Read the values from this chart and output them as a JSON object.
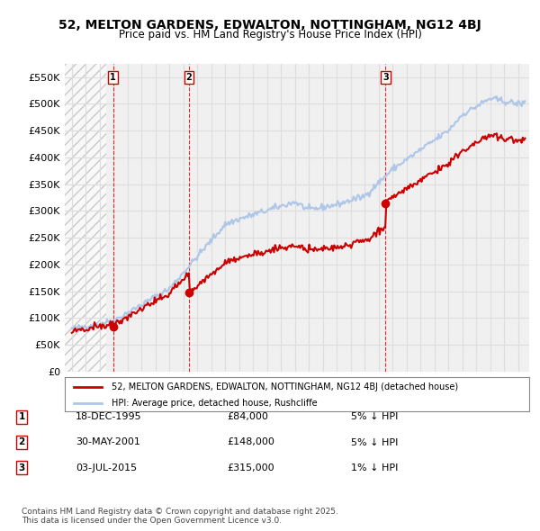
{
  "title_line1": "52, MELTON GARDENS, EDWALTON, NOTTINGHAM, NG12 4BJ",
  "title_line2": "Price paid vs. HM Land Registry's House Price Index (HPI)",
  "ylabel": "",
  "background_color": "#ffffff",
  "plot_bg_color": "#f0f0f0",
  "hatch_region_end_year": 1995.95,
  "transactions": [
    {
      "label": "1",
      "date": "18-DEC-1995",
      "year": 1995.96,
      "price": 84000
    },
    {
      "label": "2",
      "date": "30-MAY-2001",
      "year": 2001.41,
      "price": 148000
    },
    {
      "label": "3",
      "date": "03-JUL-2015",
      "year": 2015.5,
      "price": 315000
    }
  ],
  "legend_entries": [
    "52, MELTON GARDENS, EDWALTON, NOTTINGHAM, NG12 4BJ (detached house)",
    "HPI: Average price, detached house, Rushcliffe"
  ],
  "table_rows": [
    {
      "num": "1",
      "date": "18-DEC-1995",
      "price": "£84,000",
      "note": "5% ↓ HPI"
    },
    {
      "num": "2",
      "date": "30-MAY-2001",
      "price": "£148,000",
      "note": "5% ↓ HPI"
    },
    {
      "num": "3",
      "date": "03-JUL-2015",
      "price": "£315,000",
      "note": "1% ↓ HPI"
    }
  ],
  "footer": "Contains HM Land Registry data © Crown copyright and database right 2025.\nThis data is licensed under the Open Government Licence v3.0.",
  "ylim": [
    0,
    575000
  ],
  "yticks": [
    0,
    50000,
    100000,
    150000,
    200000,
    250000,
    300000,
    350000,
    400000,
    450000,
    500000,
    550000
  ],
  "ytick_labels": [
    "£0",
    "£50K",
    "£100K",
    "£150K",
    "£200K",
    "£250K",
    "£300K",
    "£350K",
    "£400K",
    "£450K",
    "£500K",
    "£550K"
  ],
  "xlim": [
    1992.5,
    2025.8
  ],
  "xticks": [
    1993,
    1994,
    1995,
    1996,
    1997,
    1998,
    1999,
    2000,
    2001,
    2002,
    2003,
    2004,
    2005,
    2006,
    2007,
    2008,
    2009,
    2010,
    2011,
    2012,
    2013,
    2014,
    2015,
    2016,
    2017,
    2018,
    2019,
    2020,
    2021,
    2022,
    2023,
    2024,
    2025
  ],
  "hpi_color": "#aec6e8",
  "price_color": "#cc0000",
  "transaction_marker_color": "#cc0000",
  "vline_color": "#cc0000",
  "hatch_color": "#cccccc",
  "grid_color": "#dddddd"
}
